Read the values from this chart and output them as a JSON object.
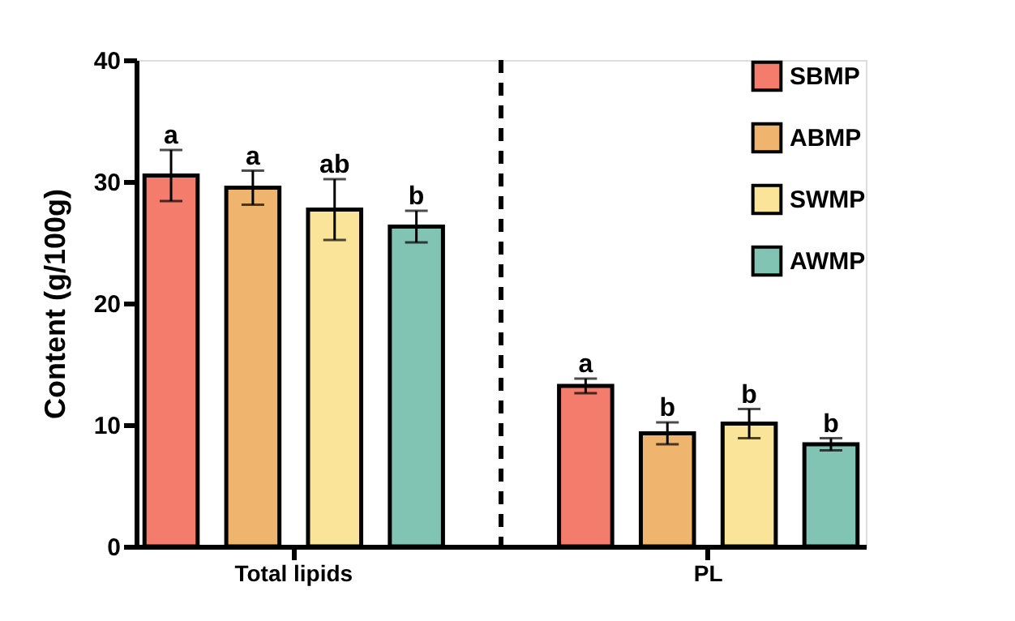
{
  "chart_data": {
    "type": "bar",
    "ylabel": "Content (g/100g)",
    "categories": [
      "Total lipids",
      "PL"
    ],
    "series": [
      {
        "name": "SBMP",
        "color": "#f47c6c",
        "values": [
          30.5,
          13.2
        ],
        "errors": [
          2.1,
          0.6
        ]
      },
      {
        "name": "ABMP",
        "color": "#efb46e",
        "values": [
          29.5,
          9.3
        ],
        "errors": [
          1.4,
          0.9
        ]
      },
      {
        "name": "SWMP",
        "color": "#f9e49a",
        "values": [
          27.7,
          10.1
        ],
        "errors": [
          2.5,
          1.2
        ]
      },
      {
        "name": "AWMP",
        "color": "#82c4b4",
        "values": [
          26.3,
          8.4
        ],
        "errors": [
          1.3,
          0.5
        ]
      }
    ],
    "annotations": [
      "a",
      "a",
      "ab",
      "b",
      "a",
      "b",
      "b",
      "b"
    ],
    "ylim": [
      0,
      40
    ],
    "yticks": [
      0,
      10,
      20,
      30,
      40
    ],
    "grid": false,
    "legend": "top right"
  }
}
